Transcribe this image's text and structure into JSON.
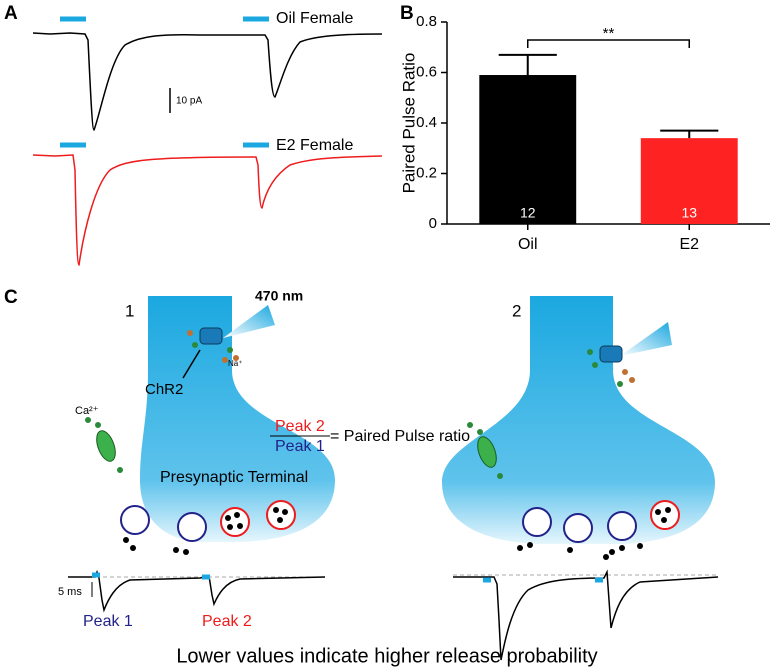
{
  "panel_a": {
    "label": "A",
    "trace_labels": [
      "Oil Female",
      "E2 Female"
    ],
    "scale_bar": "10 pA"
  },
  "chart_data": {
    "type": "bar",
    "panel_label": "B",
    "ylabel": "Paired Pulse Ratio",
    "categories": [
      "Oil",
      "E2"
    ],
    "values": [
      0.59,
      0.34
    ],
    "errors": [
      0.08,
      0.03
    ],
    "colors": [
      "#000000",
      "#ff2222"
    ],
    "n_labels": [
      12,
      13
    ],
    "ylim": [
      0,
      0.8
    ],
    "yticks": [
      0,
      0.2,
      0.4,
      0.6,
      0.8
    ],
    "significance": "**"
  },
  "panel_c": {
    "label": "C",
    "steps": [
      "1",
      "2"
    ],
    "light": "470 nm",
    "channel": "ChR2",
    "sodium": "Na⁺",
    "calcium": "Ca²⁺",
    "ratio": {
      "numerator": "Peak 2",
      "denominator": "Peak 1",
      "equals": "= Paired Pulse ratio"
    },
    "terminal": "Presynaptic Terminal",
    "time_bar": "5 ms",
    "peaks": [
      "Peak 1",
      "Peak 2"
    ],
    "caption": "Lower values indicate higher release probability"
  }
}
